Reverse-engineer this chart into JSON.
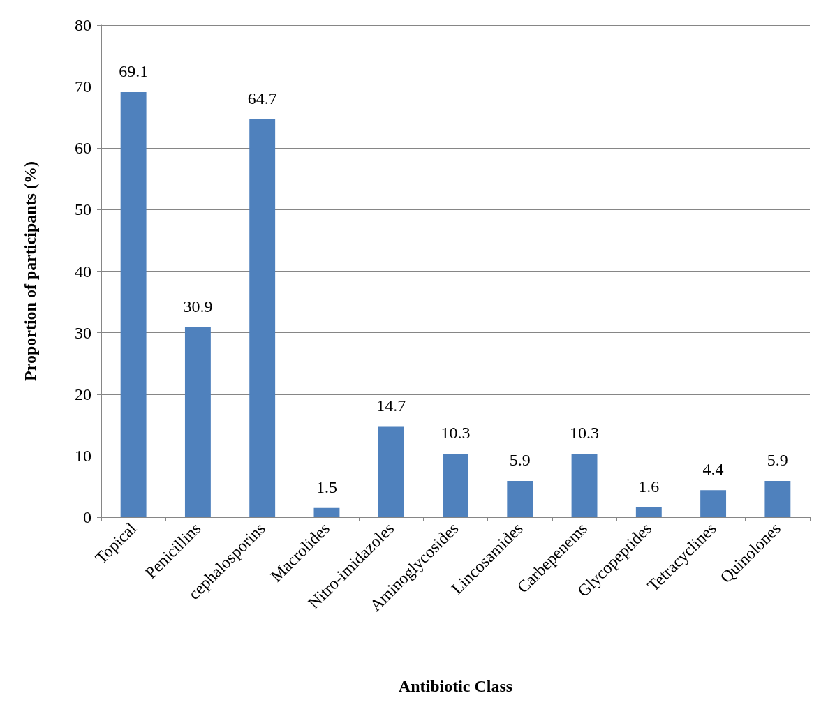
{
  "chart_data": {
    "type": "bar",
    "xlabel": "Antibiotic Class",
    "ylabel": "Proportion of participants (%)",
    "categories": [
      "Topical",
      "Penicillins",
      "cephalosporins",
      "Macrolides",
      "Nitro-imidazoles",
      "Aminoglycosides",
      "Lincosamides",
      "Carbepenems",
      "Glycopeptides",
      "Tetracyclines",
      "Quinolones"
    ],
    "values": [
      69.1,
      30.9,
      64.7,
      1.5,
      14.7,
      10.3,
      5.9,
      10.3,
      1.6,
      4.4,
      5.9
    ],
    "color": "#4f81bd",
    "ylim": [
      0,
      80
    ],
    "yticks": [
      0,
      10,
      20,
      30,
      40,
      50,
      60,
      70,
      80
    ],
    "grid": "y",
    "data_labels": true
  }
}
